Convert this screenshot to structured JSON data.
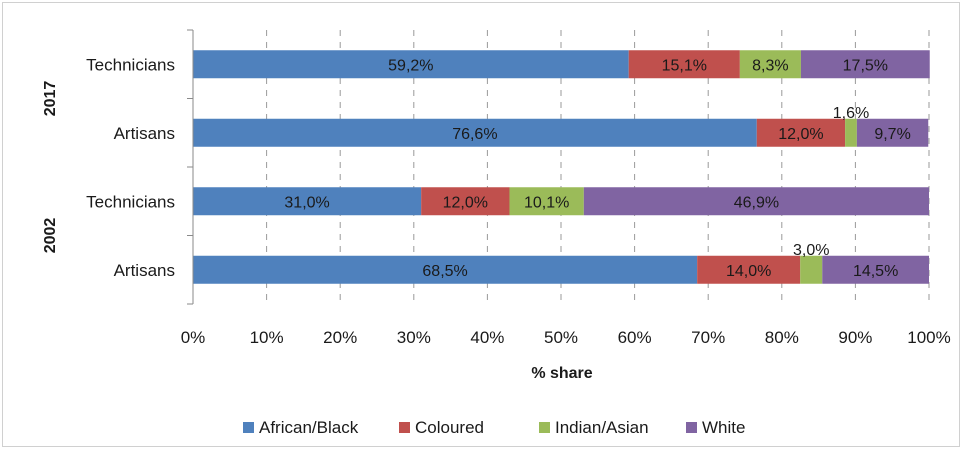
{
  "chart_data": {
    "type": "bar",
    "orientation": "horizontal",
    "stacked": "percent",
    "title": "",
    "xlabel": "% share",
    "ylabel": "",
    "xlim": [
      0,
      100
    ],
    "x_ticks": [
      "0%",
      "10%",
      "20%",
      "30%",
      "40%",
      "50%",
      "60%",
      "70%",
      "80%",
      "90%",
      "100%"
    ],
    "grid": "vertical dashed",
    "legend_position": "bottom",
    "groups": [
      {
        "label": "2017",
        "categories": [
          "Technicians",
          "Artisans"
        ]
      },
      {
        "label": "2002",
        "categories": [
          "Technicians",
          "Artisans"
        ]
      }
    ],
    "bars": [
      {
        "group": "2017",
        "category": "Technicians",
        "values": [
          59.2,
          15.1,
          8.3,
          17.5
        ],
        "labels": [
          "59,2%",
          "15,1%",
          "8,3%",
          "17,5%"
        ]
      },
      {
        "group": "2017",
        "category": "Artisans",
        "values": [
          76.6,
          12.0,
          1.6,
          9.7
        ],
        "labels": [
          "76,6%",
          "12,0%",
          "1,6%",
          "9,7%"
        ]
      },
      {
        "group": "2002",
        "category": "Technicians",
        "values": [
          31.0,
          12.0,
          10.1,
          46.9
        ],
        "labels": [
          "31,0%",
          "12,0%",
          "10,1%",
          "46,9%"
        ]
      },
      {
        "group": "2002",
        "category": "Artisans",
        "values": [
          68.5,
          14.0,
          3.0,
          14.5
        ],
        "labels": [
          "68,5%",
          "14,0%",
          "3,0%",
          "14,5%"
        ]
      }
    ],
    "series": [
      {
        "name": "African/Black",
        "color": "#4f81bd"
      },
      {
        "name": "Coloured",
        "color": "#c0504d"
      },
      {
        "name": "Indian/Asian",
        "color": "#9bbb59"
      },
      {
        "name": "White",
        "color": "#8064a2"
      }
    ]
  }
}
